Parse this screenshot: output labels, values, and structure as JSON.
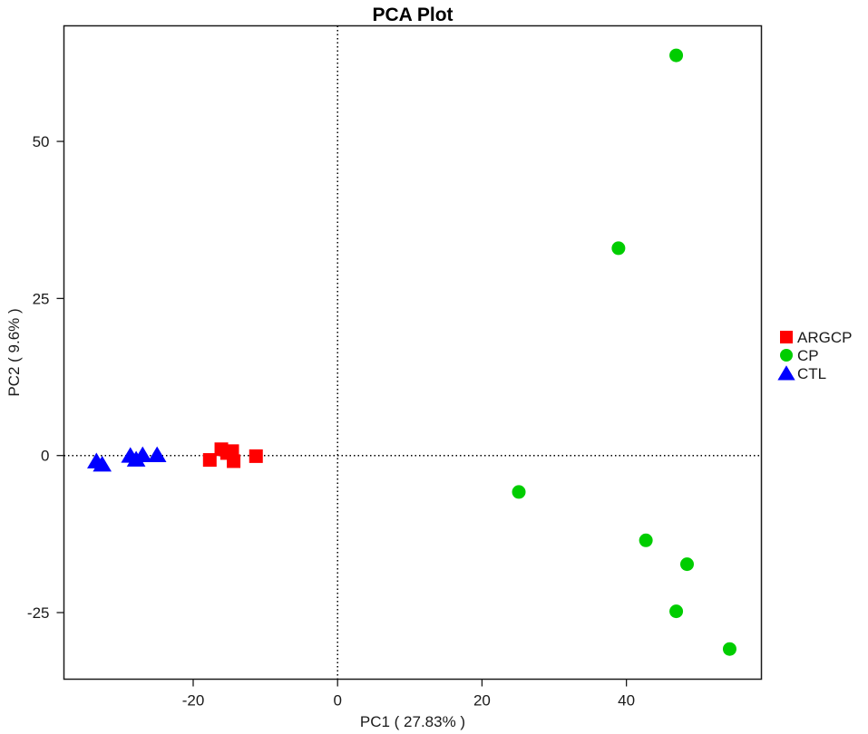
{
  "chart_data": {
    "type": "scatter",
    "title": "PCA Plot",
    "xlabel": "PC1 ( 27.83% )",
    "ylabel": "PC2 ( 9.6% )",
    "xlim": [
      -37.9,
      58.7
    ],
    "ylim": [
      -35.6,
      68.4
    ],
    "xticks": [
      -20,
      0,
      20,
      40
    ],
    "yticks": [
      -25,
      0,
      25,
      50
    ],
    "grid": false,
    "reference_lines": {
      "x": 0,
      "y": 0,
      "style": "dotted"
    },
    "legend_position": "right",
    "series": [
      {
        "name": "ARGCP",
        "marker": "square",
        "color": "#ff0000",
        "points": [
          {
            "x": -17.7,
            "y": -0.7
          },
          {
            "x": -16.1,
            "y": 1.0
          },
          {
            "x": -15.3,
            "y": 0.4
          },
          {
            "x": -14.6,
            "y": 0.7
          },
          {
            "x": -14.4,
            "y": -0.9
          },
          {
            "x": -11.3,
            "y": -0.1
          }
        ]
      },
      {
        "name": "CP",
        "marker": "circle",
        "color": "#00cd00",
        "points": [
          {
            "x": 46.9,
            "y": 63.7
          },
          {
            "x": 38.9,
            "y": 33.0
          },
          {
            "x": 25.1,
            "y": -5.8
          },
          {
            "x": 42.7,
            "y": -13.5
          },
          {
            "x": 48.4,
            "y": -17.3
          },
          {
            "x": 46.9,
            "y": -24.8
          },
          {
            "x": 54.3,
            "y": -30.8
          }
        ]
      },
      {
        "name": "CTL",
        "marker": "triangle",
        "color": "#0000ff",
        "points": [
          {
            "x": -33.4,
            "y": -0.9
          },
          {
            "x": -32.6,
            "y": -1.4
          },
          {
            "x": -28.7,
            "y": 0.0
          },
          {
            "x": -27.9,
            "y": -0.6
          },
          {
            "x": -27.0,
            "y": 0.1
          },
          {
            "x": -25.0,
            "y": 0.1
          }
        ]
      }
    ]
  }
}
